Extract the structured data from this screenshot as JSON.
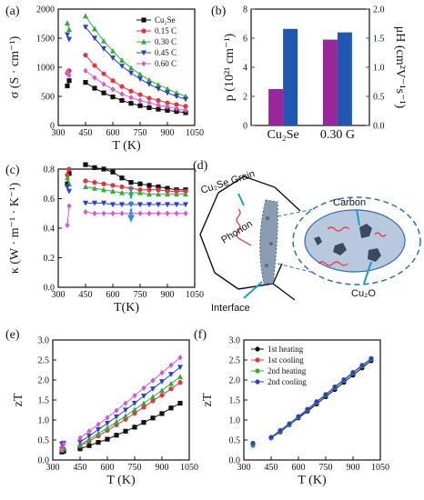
{
  "panels": {
    "a": "(a)",
    "b": "(b)",
    "c": "(c)",
    "d": "(d)",
    "e": "(e)",
    "f": "(f)"
  },
  "colors": {
    "cu2se": "#111111",
    "c015": "#e8323c",
    "c030": "#2fae3a",
    "c045": "#2b3fd6",
    "c060": "#d25bd2",
    "bar_purple": "#99279b",
    "bar_blue": "#1f57b3",
    "heat1": "#111111",
    "cool1": "#e8323c",
    "heat2": "#2fae3a",
    "cool2": "#2b3fd6",
    "arrow_cyan": "#1a9ad6"
  },
  "chart_data": [
    {
      "id": "a",
      "type": "line",
      "ylabel": "σ (S · cm⁻¹)",
      "xlabel": "T (K)",
      "xlim": [
        300,
        1050
      ],
      "ylim": [
        0,
        2000
      ],
      "xticks": [
        300,
        450,
        600,
        750,
        900,
        1050
      ],
      "yticks": [
        0,
        500,
        1000,
        1500,
        2000
      ],
      "legend_position": "top-right",
      "series": [
        {
          "name": "Cu2Se",
          "color_key": "cu2se",
          "marker": "square",
          "x": [
            350,
            360,
            450,
            500,
            550,
            600,
            650,
            700,
            750,
            800,
            850,
            900,
            950,
            1000
          ],
          "y": [
            680,
            770,
            740,
            640,
            560,
            490,
            430,
            380,
            340,
            305,
            280,
            260,
            240,
            220
          ]
        },
        {
          "name": "0.15 C",
          "color_key": "c015",
          "marker": "circle",
          "x": [
            350,
            360,
            450,
            500,
            550,
            600,
            650,
            700,
            750,
            800,
            850,
            900,
            950,
            1000
          ],
          "y": [
            900,
            940,
            1210,
            1030,
            890,
            770,
            670,
            590,
            530,
            470,
            430,
            390,
            360,
            330
          ]
        },
        {
          "name": "0.30 C",
          "color_key": "c030",
          "marker": "triangle-up",
          "x": [
            350,
            360,
            450,
            500,
            550,
            600,
            650,
            700,
            750,
            800,
            850,
            900,
            950,
            1000
          ],
          "y": [
            1760,
            1650,
            1880,
            1660,
            1450,
            1280,
            1120,
            990,
            880,
            780,
            700,
            630,
            560,
            500
          ]
        },
        {
          "name": "0.45 C",
          "color_key": "c045",
          "marker": "triangle-down",
          "x": [
            350,
            360,
            450,
            500,
            550,
            600,
            650,
            700,
            750,
            800,
            850,
            900,
            950,
            1000
          ],
          "y": [
            1560,
            1480,
            1690,
            1500,
            1320,
            1160,
            1020,
            900,
            800,
            710,
            630,
            560,
            500,
            450
          ]
        },
        {
          "name": "0.60 C",
          "color_key": "c060",
          "marker": "diamond",
          "x": [
            350,
            360,
            450,
            500,
            550,
            600,
            650,
            700,
            750,
            800,
            850,
            900,
            950,
            1000
          ],
          "y": [
            920,
            860,
            940,
            820,
            710,
            620,
            540,
            480,
            430,
            390,
            350,
            320,
            290,
            260
          ]
        }
      ],
      "legend_labels": [
        "Cu₂Se",
        "0.15 C",
        "0.30 C",
        "0.45 C",
        "0.60 C"
      ]
    },
    {
      "id": "b",
      "type": "bar",
      "categories": [
        "Cu₂Se",
        "0.30 G"
      ],
      "ylabel_left": "p (10²¹ cm⁻¹)",
      "ylabel_right": "μH (cm²V⁻¹s⁻¹)",
      "ylim_left": [
        0,
        8
      ],
      "ylim_right": [
        0,
        2.0
      ],
      "yticks_left": [
        0,
        2,
        4,
        6,
        8
      ],
      "yticks_right": [
        "0.0",
        "0.5",
        "1.0",
        "1.5",
        "2.0"
      ],
      "series": [
        {
          "name": "p",
          "color_key": "bar_purple",
          "axis": "left",
          "values": [
            2.5,
            5.9
          ]
        },
        {
          "name": "μH",
          "color_key": "bar_blue",
          "axis": "right",
          "values": [
            1.66,
            1.6
          ]
        }
      ]
    },
    {
      "id": "c",
      "type": "line",
      "ylabel": "κ (W · m⁻¹ · K⁻¹)",
      "xlabel": "T(K)",
      "xlim": [
        300,
        1050
      ],
      "ylim": [
        0.0,
        0.8
      ],
      "xticks": [
        300,
        450,
        600,
        750,
        900,
        1050
      ],
      "yticks": [
        "0.0",
        "0.2",
        "0.4",
        "0.6",
        "0.8"
      ],
      "series": [
        {
          "name": "Cu2Se",
          "color_key": "cu2se",
          "marker": "square",
          "x": [
            350,
            360,
            450,
            500,
            550,
            600,
            650,
            700,
            750,
            800,
            850,
            900,
            950,
            1000
          ],
          "y": [
            0.7,
            0.77,
            0.83,
            0.81,
            0.8,
            0.78,
            0.74,
            0.71,
            0.7,
            0.69,
            0.68,
            0.67,
            0.66,
            0.66
          ]
        },
        {
          "name": "0.15 C",
          "color_key": "c015",
          "marker": "circle",
          "x": [
            350,
            360,
            450,
            500,
            550,
            600,
            650,
            700,
            750,
            800,
            850,
            900,
            950,
            1000
          ],
          "y": [
            0.76,
            0.8,
            0.72,
            0.71,
            0.7,
            0.69,
            0.68,
            0.67,
            0.66,
            0.66,
            0.66,
            0.65,
            0.65,
            0.65
          ]
        },
        {
          "name": "0.30 C",
          "color_key": "c030",
          "marker": "triangle-up",
          "x": [
            350,
            360,
            450,
            500,
            550,
            600,
            650,
            700,
            750,
            800,
            850,
            900,
            950,
            1000
          ],
          "y": [
            0.74,
            0.7,
            0.68,
            0.67,
            0.66,
            0.65,
            0.64,
            0.64,
            0.64,
            0.63,
            0.63,
            0.63,
            0.63,
            0.63
          ]
        },
        {
          "name": "0.45 C",
          "color_key": "c045",
          "marker": "triangle-down",
          "x": [
            350,
            360,
            450,
            500,
            550,
            600,
            650,
            700,
            750,
            800,
            850,
            900,
            950,
            1000
          ],
          "y": [
            0.68,
            0.65,
            0.57,
            0.57,
            0.57,
            0.56,
            0.56,
            0.56,
            0.56,
            0.56,
            0.56,
            0.56,
            0.56,
            0.56
          ]
        },
        {
          "name": "0.60 C",
          "color_key": "c060",
          "marker": "diamond",
          "x": [
            350,
            360,
            450,
            500,
            550,
            600,
            650,
            700,
            750,
            800,
            850,
            900,
            950,
            1000
          ],
          "y": [
            0.42,
            0.55,
            0.51,
            0.5,
            0.5,
            0.5,
            0.5,
            0.5,
            0.5,
            0.5,
            0.5,
            0.5,
            0.5,
            0.5
          ]
        }
      ],
      "annotation": "dashed arrow at T ≈ 700 K pointing down"
    },
    {
      "id": "e",
      "type": "line",
      "ylabel": "zT",
      "xlabel": "T (K)",
      "xlim": [
        300,
        1050
      ],
      "ylim": [
        0.0,
        3.0
      ],
      "xticks": [
        300,
        450,
        600,
        750,
        900,
        1050
      ],
      "yticks": [
        "0.0",
        "0.5",
        "1.0",
        "1.5",
        "2.0",
        "2.5",
        "3.0"
      ],
      "series": [
        {
          "name": "Cu2Se",
          "color_key": "cu2se",
          "marker": "square",
          "x": [
            350,
            360,
            450,
            500,
            550,
            600,
            650,
            700,
            750,
            800,
            850,
            900,
            950,
            1000
          ],
          "y": [
            0.2,
            0.22,
            0.28,
            0.36,
            0.44,
            0.52,
            0.62,
            0.72,
            0.82,
            0.94,
            1.05,
            1.16,
            1.3,
            1.42
          ]
        },
        {
          "name": "0.15 C",
          "color_key": "c015",
          "marker": "circle",
          "x": [
            350,
            360,
            450,
            500,
            550,
            600,
            650,
            700,
            750,
            800,
            850,
            900,
            950,
            1000
          ],
          "y": [
            0.3,
            0.28,
            0.35,
            0.48,
            0.6,
            0.74,
            0.88,
            1.02,
            1.17,
            1.32,
            1.48,
            1.62,
            1.78,
            1.94
          ]
        },
        {
          "name": "0.30 C",
          "color_key": "c030",
          "marker": "triangle-up",
          "x": [
            350,
            360,
            450,
            500,
            550,
            600,
            650,
            700,
            750,
            800,
            850,
            900,
            950,
            1000
          ],
          "y": [
            0.25,
            0.3,
            0.38,
            0.52,
            0.66,
            0.8,
            0.95,
            1.1,
            1.26,
            1.42,
            1.58,
            1.74,
            1.91,
            2.08
          ]
        },
        {
          "name": "0.45 C",
          "color_key": "c045",
          "marker": "triangle-down",
          "x": [
            350,
            360,
            450,
            500,
            550,
            600,
            650,
            700,
            750,
            800,
            850,
            900,
            950,
            1000
          ],
          "y": [
            0.4,
            0.42,
            0.45,
            0.6,
            0.76,
            0.92,
            1.08,
            1.25,
            1.42,
            1.6,
            1.78,
            1.96,
            2.14,
            2.32
          ]
        },
        {
          "name": "0.60 C",
          "color_key": "c060",
          "marker": "diamond",
          "x": [
            350,
            360,
            450,
            500,
            550,
            600,
            650,
            700,
            750,
            800,
            850,
            900,
            950,
            1000
          ],
          "y": [
            0.25,
            0.4,
            0.55,
            0.72,
            0.89,
            1.06,
            1.24,
            1.42,
            1.61,
            1.8,
            1.99,
            2.18,
            2.37,
            2.56
          ]
        }
      ]
    },
    {
      "id": "f",
      "type": "line",
      "ylabel": "zT",
      "xlabel": "T (K)",
      "xlim": [
        300,
        1050
      ],
      "ylim": [
        0.0,
        3.0
      ],
      "xticks": [
        300,
        450,
        600,
        750,
        900,
        1050
      ],
      "yticks": [
        "0.0",
        "0.5",
        "1.0",
        "1.5",
        "2.0",
        "2.5",
        "3.0"
      ],
      "legend_position": "top-left",
      "series": [
        {
          "name": "1st heating",
          "color_key": "heat1",
          "marker": "circle",
          "x": [
            350,
            450,
            500,
            550,
            600,
            650,
            700,
            750,
            800,
            850,
            900,
            950,
            1000
          ],
          "y": [
            0.4,
            0.55,
            0.7,
            0.88,
            1.05,
            1.22,
            1.4,
            1.58,
            1.76,
            1.94,
            2.12,
            2.3,
            2.48
          ]
        },
        {
          "name": "1st cooling",
          "color_key": "cool1",
          "marker": "circle",
          "x": [
            350,
            450,
            500,
            550,
            600,
            650,
            700,
            750,
            800,
            850,
            900,
            950,
            1000
          ],
          "y": [
            0.38,
            0.56,
            0.73,
            0.9,
            1.08,
            1.26,
            1.45,
            1.63,
            1.82,
            2.0,
            2.18,
            2.36,
            2.52
          ]
        },
        {
          "name": "2nd heating",
          "color_key": "heat2",
          "marker": "circle",
          "x": [
            350,
            450,
            500,
            550,
            600,
            650,
            700,
            750,
            800,
            850,
            900,
            950,
            1000
          ],
          "y": [
            0.36,
            0.55,
            0.72,
            0.89,
            1.07,
            1.25,
            1.44,
            1.62,
            1.81,
            1.99,
            2.17,
            2.35,
            2.52
          ]
        },
        {
          "name": "2nd cooling",
          "color_key": "cool2",
          "marker": "circle",
          "x": [
            350,
            450,
            500,
            550,
            600,
            650,
            700,
            750,
            800,
            850,
            900,
            950,
            1000
          ],
          "y": [
            0.42,
            0.57,
            0.74,
            0.91,
            1.09,
            1.27,
            1.46,
            1.64,
            1.83,
            2.01,
            2.19,
            2.37,
            2.54
          ]
        }
      ]
    }
  ],
  "diagram_d": {
    "grain_label": "Cu₂Se Grain",
    "phonon_label": "Phonon",
    "interface_label": "Interface",
    "carbon_label": "Carbon",
    "oxide_label": "Cu₂O",
    "colors": {
      "bubble_fill": "#b9c9dd",
      "bubble_stroke": "#2a6fb0",
      "particle": "#3b4a5e",
      "phonon": "#e8323c",
      "arrow": "#1a9ad6"
    }
  }
}
